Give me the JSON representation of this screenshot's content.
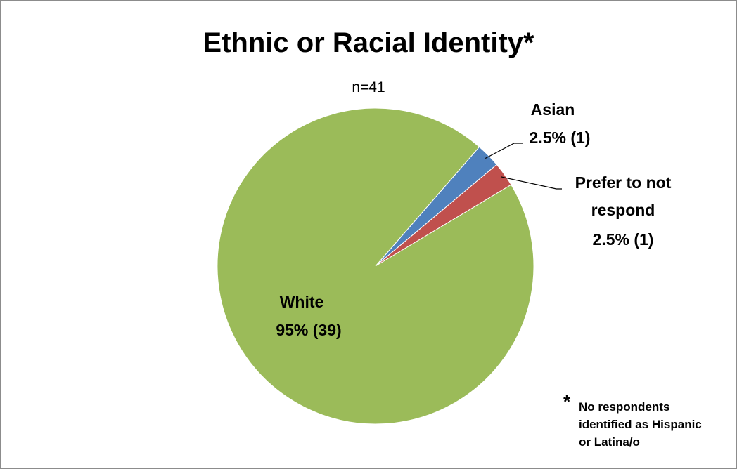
{
  "chart_data": {
    "type": "pie",
    "title": "Ethnic or Racial Identity*",
    "subtitle": "n=41",
    "slices": [
      {
        "name": "Asian",
        "label": "2.5% (1)",
        "percent": 2.5,
        "count": 1,
        "color": "#4f81bd"
      },
      {
        "name": "Prefer to not respond",
        "label_lines": [
          "Prefer to not",
          "respond"
        ],
        "label": "2.5% (1)",
        "percent": 2.5,
        "count": 1,
        "color": "#c0504d"
      },
      {
        "name": "White",
        "label": "95% (39)",
        "percent": 95,
        "count": 39,
        "color": "#9bbb59"
      }
    ],
    "note": {
      "symbol": "*",
      "text": "No respondents identified as Hispanic or Latina/o",
      "lines": [
        "No respondents",
        "identified as Hispanic",
        "or Latina/o"
      ]
    }
  }
}
